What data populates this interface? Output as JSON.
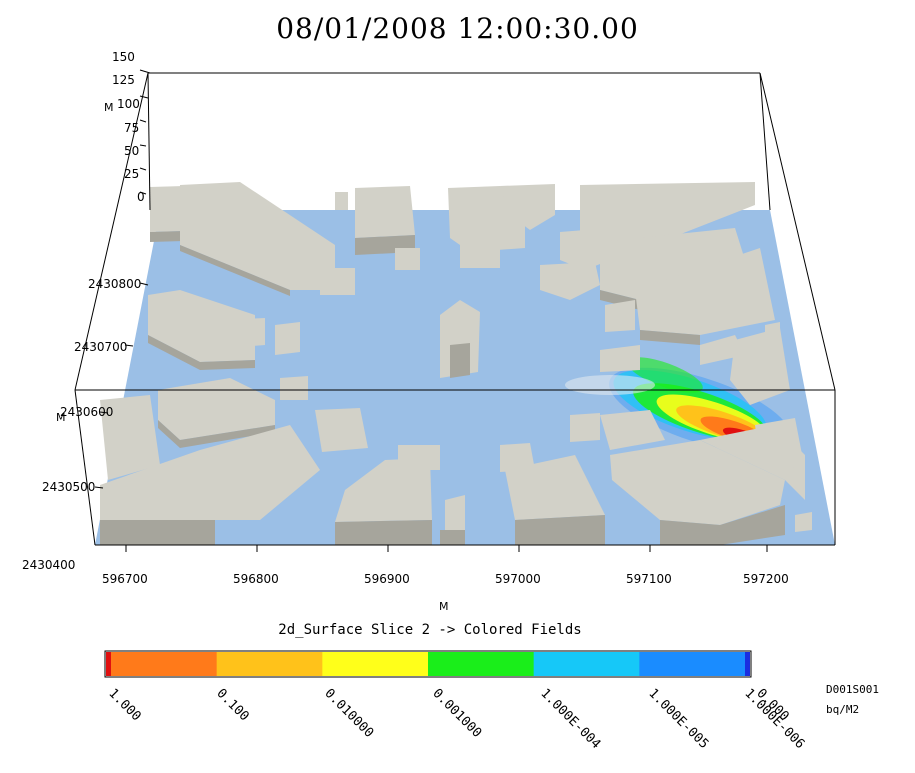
{
  "title": "08/01/2008 12:00:30.00",
  "z_axis": {
    "ticks": [
      "150",
      "125",
      "100",
      "75",
      "50",
      "25",
      "0"
    ],
    "unit": "M"
  },
  "y_axis": {
    "ticks": [
      "2430800",
      "2430700",
      "2430600",
      "2430500",
      "2430400"
    ],
    "unit": "M"
  },
  "x_axis": {
    "ticks": [
      "596700",
      "596800",
      "596900",
      "597000",
      "597100",
      "597200"
    ],
    "unit": "M"
  },
  "field_title": "2d_Surface Slice 2 -> Colored Fields",
  "colorbar": {
    "labels": [
      "1.000",
      "0.100",
      "0.010000",
      "0.001000",
      "1.000E-004",
      "1.000E-005",
      "1.000E-006",
      "0.000"
    ],
    "colors": [
      "#ff7a1a",
      "#ffc21a",
      "#ffff1a",
      "#1aee1a",
      "#16c8f8",
      "#1a8cff"
    ],
    "top_end_color": "#e01010",
    "bottom_end_color": "#1a2ee0"
  },
  "dataset_id": "D001S001",
  "units": "bq/M2",
  "scene_colors": {
    "ground": "#9bbfe6",
    "building_top": "#d2d1c8",
    "building_side": "#a6a59c",
    "background": "#ffffff"
  }
}
